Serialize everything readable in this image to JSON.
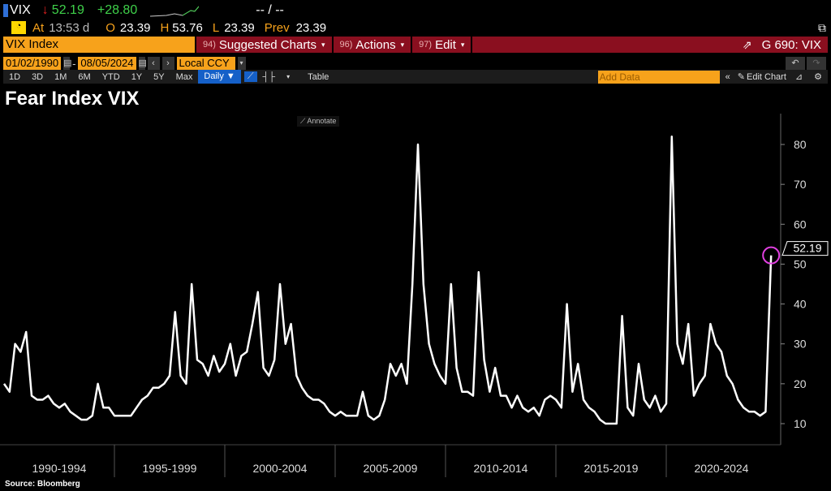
{
  "ticker": {
    "symbol": "VIX",
    "last": "52.19",
    "change": "+28.80",
    "bidask": "-- / --",
    "at_label": "At",
    "time": "13:53 d",
    "open_label": "O",
    "open": "23.39",
    "high_label": "H",
    "high": "53.76",
    "low_label": "L",
    "low": "23.39",
    "prev_label": "Prev",
    "prev": "23.39"
  },
  "menubar": {
    "security": "VIX Index",
    "suggested": {
      "num": "94)",
      "label": "Suggested Charts"
    },
    "actions": {
      "num": "96)",
      "label": "Actions"
    },
    "edit": {
      "num": "97)",
      "label": "Edit"
    },
    "page_code": "G 690: VIX"
  },
  "range": {
    "start": "01/02/1990",
    "end": "08/05/2024",
    "currency": "Local CCY"
  },
  "toolbar": {
    "periods": [
      "1D",
      "3D",
      "1M",
      "6M",
      "YTD",
      "1Y",
      "5Y",
      "Max"
    ],
    "frequency": "Daily ▼",
    "table": "Table",
    "add_data_placeholder": "Add Data",
    "edit_chart": "Edit Chart"
  },
  "annotate": "Annotate",
  "source": "Source: Bloomberg",
  "colors": {
    "orange": "#f7a21b",
    "red": "#8a0f1f",
    "green": "#3fd14a",
    "marker": "#e040e0"
  },
  "chart_data": {
    "type": "line",
    "title": "Fear Index VIX",
    "series_name": "VIX",
    "xlabel": "",
    "ylabel": "",
    "ylim": [
      5,
      88
    ],
    "yticks": [
      10,
      20,
      30,
      40,
      50,
      60,
      70,
      80
    ],
    "x_period_labels": [
      "1990-1994",
      "1995-1999",
      "2000-2004",
      "2005-2009",
      "2010-2014",
      "2015-2019",
      "2020-2024"
    ],
    "start_year": 1990,
    "step_years": 0.25,
    "values": [
      20,
      18,
      30,
      28,
      33,
      17,
      16,
      16,
      17,
      15,
      14,
      15,
      13,
      12,
      11,
      11,
      12,
      20,
      14,
      14,
      12,
      12,
      12,
      12,
      14,
      16,
      17,
      19,
      19,
      20,
      22,
      38,
      22,
      20,
      45,
      26,
      25,
      22,
      27,
      23,
      25,
      30,
      22,
      27,
      28,
      35,
      43,
      24,
      22,
      26,
      45,
      30,
      35,
      22,
      19,
      17,
      16,
      16,
      15,
      13,
      12,
      13,
      12,
      12,
      12,
      18,
      12,
      11,
      12,
      16,
      25,
      22,
      25,
      20,
      45,
      80,
      45,
      30,
      25,
      22,
      20,
      45,
      24,
      18,
      18,
      17,
      48,
      26,
      18,
      24,
      17,
      17,
      14,
      17,
      14,
      13,
      14,
      12,
      16,
      17,
      16,
      14,
      40,
      18,
      25,
      16,
      14,
      13,
      11,
      10,
      10,
      10,
      37,
      14,
      12,
      25,
      16,
      14,
      17,
      13,
      15,
      82,
      30,
      25,
      35,
      17,
      20,
      22,
      35,
      30,
      28,
      22,
      20,
      16,
      14,
      13,
      13,
      12,
      13,
      52.19
    ],
    "last_label": "52.19",
    "grid": false
  }
}
